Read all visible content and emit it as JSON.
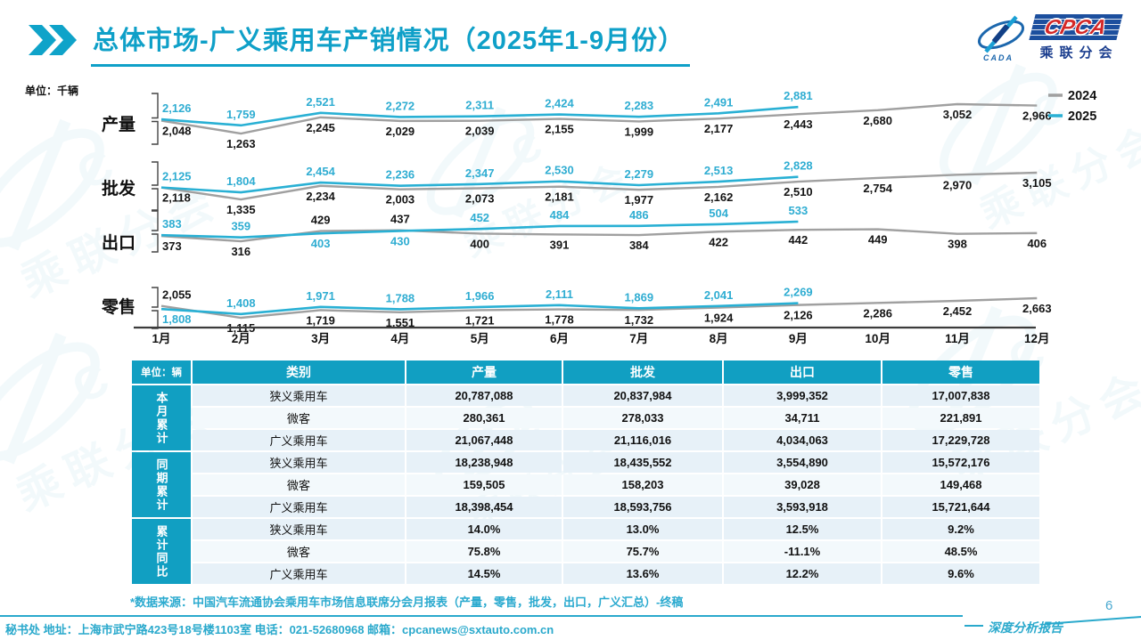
{
  "header": {
    "title": "总体市场-广义乘用车产销情况（2025年1-9月份）",
    "logo": {
      "cpca": "CPCA",
      "cada": "CADA",
      "subtitle": "乘联分会"
    }
  },
  "chart_data": {
    "type": "line",
    "unit_label": "单位：千辆",
    "months": [
      "1月",
      "2月",
      "3月",
      "4月",
      "5月",
      "6月",
      "7月",
      "8月",
      "9月",
      "10月",
      "11月",
      "12月"
    ],
    "legend": [
      {
        "name": "2024",
        "color": "#a0a0a0"
      },
      {
        "name": "2025",
        "color": "#29b0d4"
      }
    ],
    "bands": [
      {
        "label": "产量",
        "series": [
          {
            "name": "2024",
            "values": [
              2048,
              1263,
              2245,
              2029,
              2039,
              2155,
              1999,
              2177,
              2443,
              2680,
              3052,
              2966
            ]
          },
          {
            "name": "2025",
            "values": [
              2126,
              1759,
              2521,
              2272,
              2311,
              2424,
              2283,
              2491,
              2881
            ]
          }
        ]
      },
      {
        "label": "批发",
        "series": [
          {
            "name": "2024",
            "values": [
              2118,
              1335,
              2234,
              2003,
              2073,
              2181,
              1977,
              2162,
              2510,
              2754,
              2970,
              3105
            ]
          },
          {
            "name": "2025",
            "values": [
              2125,
              1804,
              2454,
              2236,
              2347,
              2530,
              2279,
              2513,
              2828
            ]
          }
        ]
      },
      {
        "label": "出口",
        "series": [
          {
            "name": "2024",
            "values": [
              373,
              316,
              429,
              437,
              400,
              391,
              384,
              422,
              442,
              449,
              398,
              406
            ]
          },
          {
            "name": "2025",
            "values": [
              383,
              359,
              403,
              430,
              452,
              484,
              486,
              504,
              533
            ]
          }
        ]
      },
      {
        "label": "零售",
        "series": [
          {
            "name": "2024",
            "values": [
              2055,
              1115,
              1719,
              1551,
              1721,
              1778,
              1732,
              1924,
              2126,
              2286,
              2452,
              2663
            ]
          },
          {
            "name": "2025",
            "values": [
              1808,
              1408,
              1971,
              1788,
              1966,
              2111,
              1869,
              2041,
              2269
            ]
          }
        ]
      }
    ]
  },
  "table": {
    "unit_header": "单位：辆",
    "columns": [
      "类别",
      "产量",
      "批发",
      "出口",
      "零售"
    ],
    "groups": [
      {
        "label": "本月累计",
        "rows": [
          [
            "狭义乘用车",
            "20,787,088",
            "20,837,984",
            "3,999,352",
            "17,007,838"
          ],
          [
            "微客",
            "280,361",
            "278,033",
            "34,711",
            "221,891"
          ],
          [
            "广义乘用车",
            "21,067,448",
            "21,116,016",
            "4,034,063",
            "17,229,728"
          ]
        ]
      },
      {
        "label": "同期累计",
        "rows": [
          [
            "狭义乘用车",
            "18,238,948",
            "18,435,552",
            "3,554,890",
            "15,572,176"
          ],
          [
            "微客",
            "159,505",
            "158,203",
            "39,028",
            "149,468"
          ],
          [
            "广义乘用车",
            "18,398,454",
            "18,593,756",
            "3,593,918",
            "15,721,644"
          ]
        ]
      },
      {
        "label": "累计同比",
        "rows": [
          [
            "狭义乘用车",
            "14.0%",
            "13.0%",
            "12.5%",
            "9.2%"
          ],
          [
            "微客",
            "75.8%",
            "75.7%",
            "-11.1%",
            "48.5%"
          ],
          [
            "广义乘用车",
            "14.5%",
            "13.6%",
            "12.2%",
            "9.6%"
          ]
        ]
      }
    ]
  },
  "footer": {
    "source_note": "*数据来源：中国汽车流通协会乘用车市场信息联席分会月报表（产量，零售，批发，出口，广义汇总）-终稿",
    "contact": "秘书处  地址：上海市武宁路423号18号楼1103室  电话：021-52680968  邮箱：cpcanews@sxtauto.com.cn",
    "page_number": "6",
    "report_label": "深度分析报告"
  },
  "colors": {
    "accent_teal": "#0fa0c8",
    "line_2024": "#a0a0a0",
    "line_2025": "#29b0d4",
    "table_header_teal": "#119fc2",
    "row_light_blue": "#e7f1f8",
    "row_lighter": "#f3f9fc",
    "logo_band_blue": "#1c4f9e",
    "logo_red": "#d42727"
  }
}
